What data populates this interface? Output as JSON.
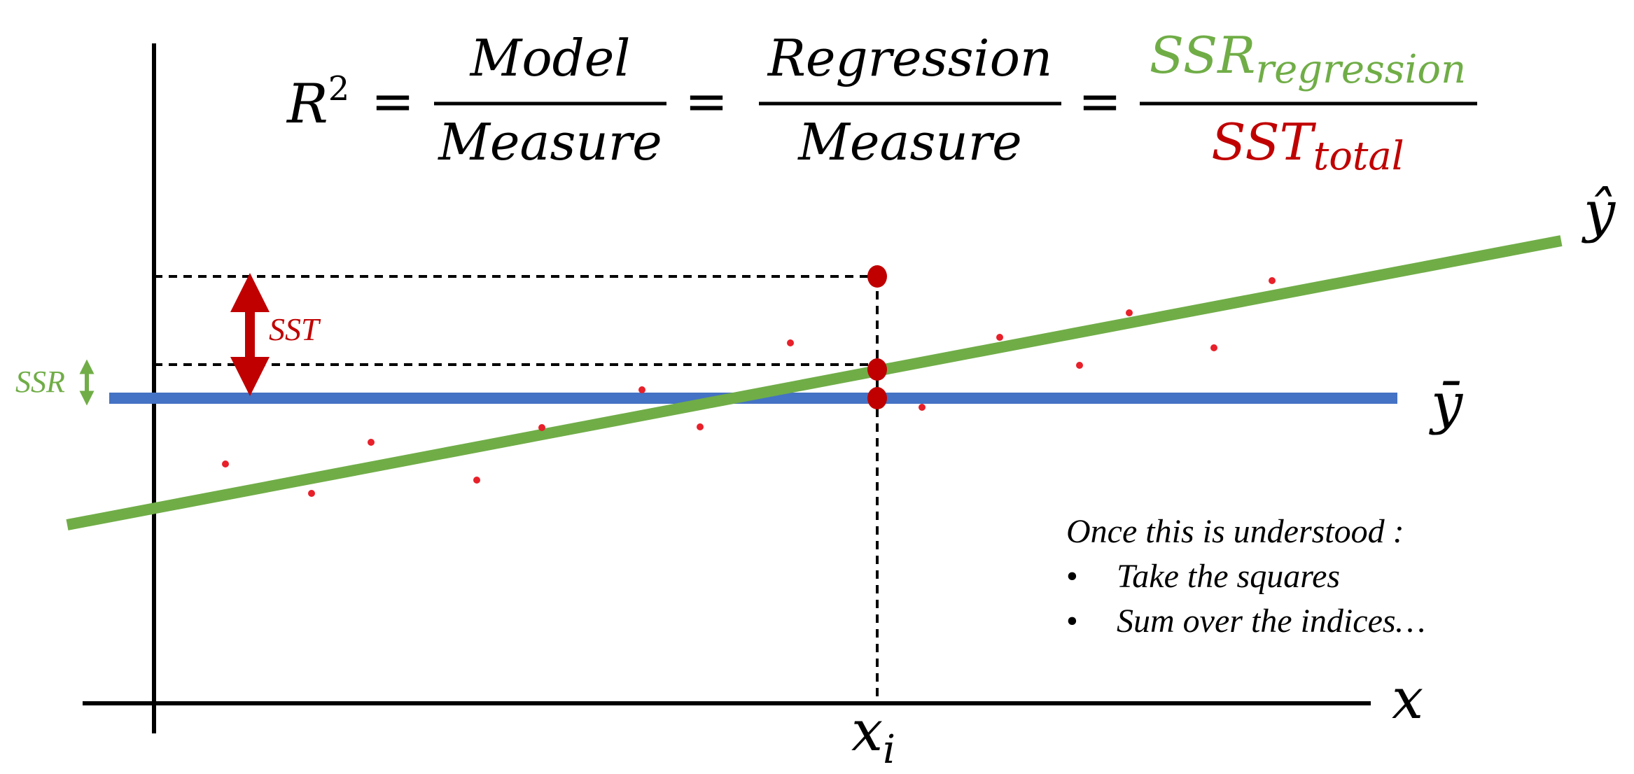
{
  "formula": {
    "lhs_base": "R",
    "lhs_exp": "2",
    "eq": "=",
    "frac1_num": "Model",
    "frac1_den": "Measure",
    "frac2_num": "Regression",
    "frac2_den": "Measure",
    "frac3_num_base": "SSR",
    "frac3_num_sub": "regression",
    "frac3_den_base": "SST",
    "frac3_den_sub": "total"
  },
  "labels": {
    "sst": "SST",
    "ssr": "SSR",
    "y_hat": "ŷ",
    "y_bar": "ȳ",
    "x_axis": "x",
    "x_i_base": "x",
    "x_i_sub": "i"
  },
  "notes": {
    "intro": "Once this is understood :",
    "items": [
      "Take the squares",
      "Sum over the indices…"
    ]
  },
  "colors": {
    "green": "#70ad47",
    "blue": "#4472c4",
    "red": "#c00000",
    "point": "#e8202a"
  }
}
